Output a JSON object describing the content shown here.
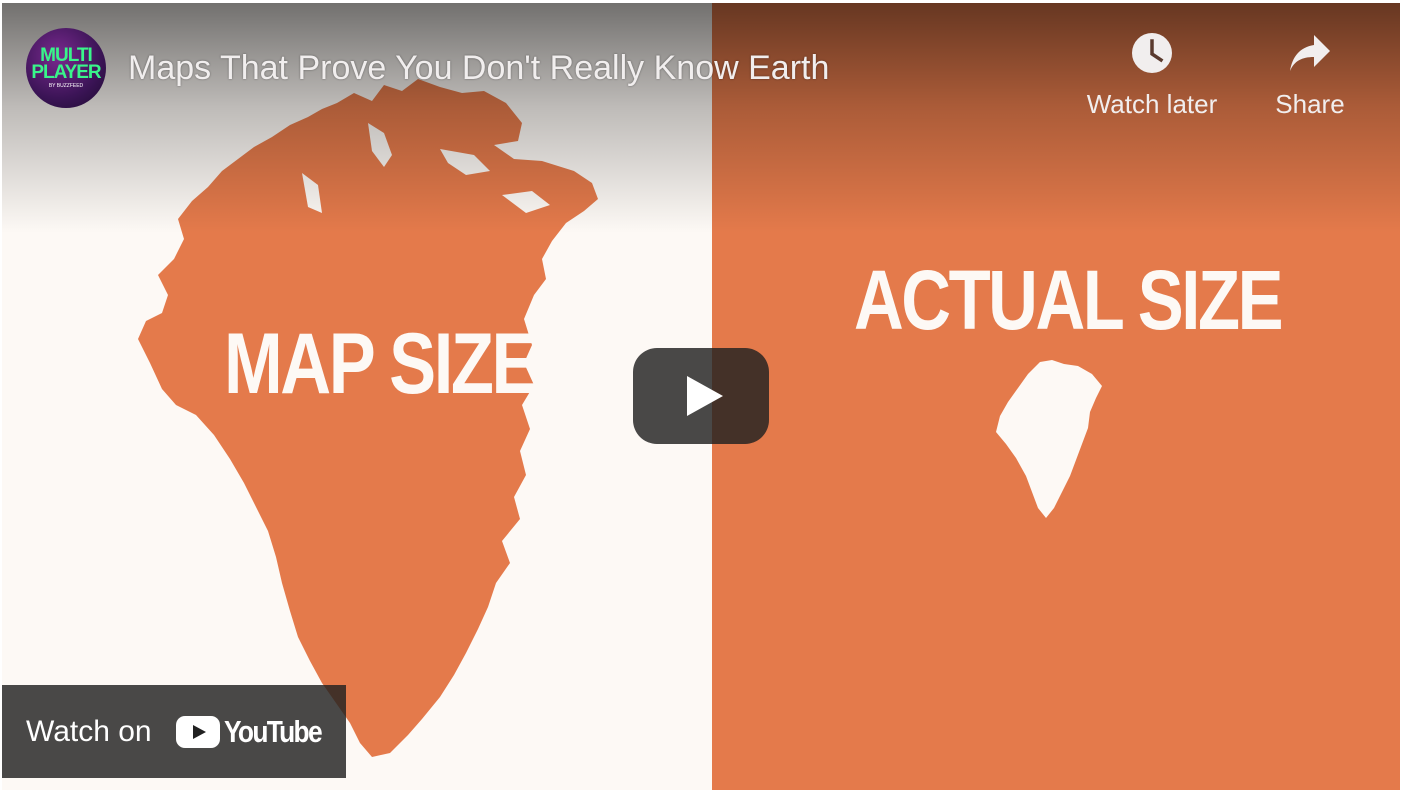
{
  "video": {
    "title": "Maps That Prove You Don't Really Know Earth",
    "channel": {
      "avatar_line1": "MULTI",
      "avatar_line2": "PLAYER",
      "avatar_line3": "BY BUZZFEED"
    }
  },
  "thumbnail": {
    "left_label": "MAP SIZE",
    "right_label": "ACTUAL SIZE",
    "left_bg": "#fdf9f5",
    "right_bg": "#e47a4b",
    "shape_color": "#e47a4b"
  },
  "actions": {
    "watch_later_label": "Watch later",
    "share_label": "Share"
  },
  "bottom": {
    "watch_on_label": "Watch on",
    "youtube_word": "YouTube"
  },
  "icons": {
    "watch_later": "clock-icon",
    "share": "share-arrow-icon",
    "play": "play-icon",
    "youtube": "youtube-logo-icon"
  },
  "colors": {
    "youtube_red": "#ff0000",
    "play_button_bg": "#212121",
    "accent_green": "#39f58a"
  }
}
